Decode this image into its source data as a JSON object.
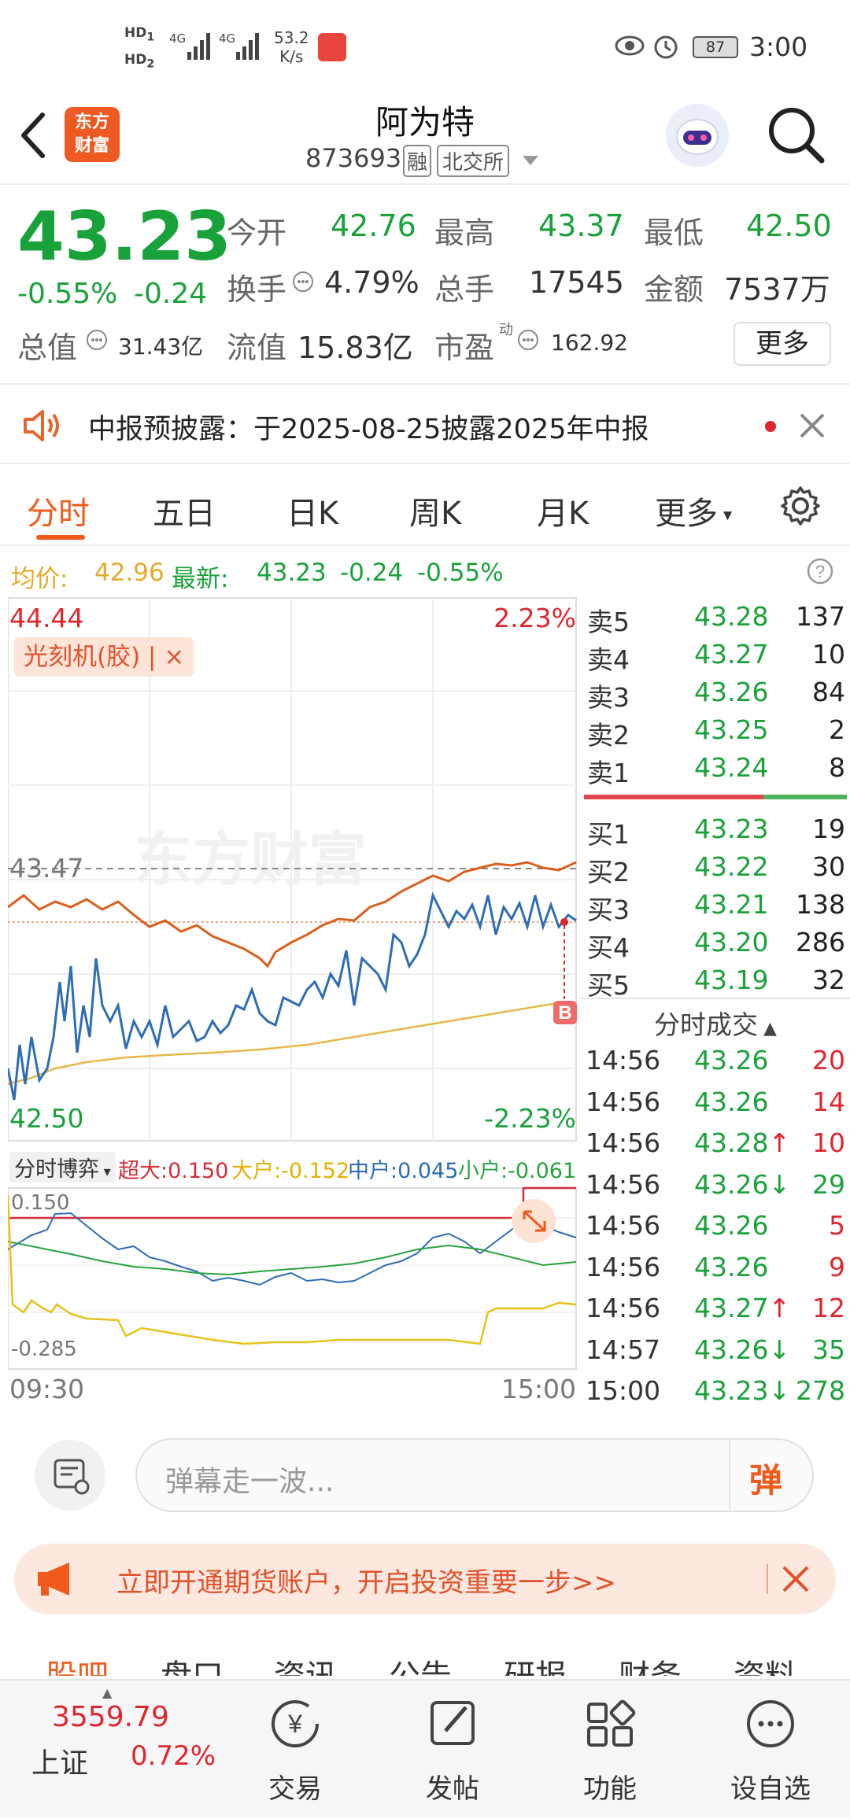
{
  "status_bar": {
    "hd1": "HD",
    "hd1_sub": "1",
    "hd2": "HD",
    "hd2_sub": "2",
    "sig1": "4G",
    "sig2": "4G",
    "speed_value": "53.2",
    "speed_unit": "K/s",
    "battery": "87",
    "time": "3:00"
  },
  "header": {
    "brand_line1": "东方",
    "brand_line2": "财富",
    "stock_name": "阿为特",
    "stock_code": "873693",
    "badge_margin": "融",
    "badge_exchange": "北交所"
  },
  "quote": {
    "price": "43.23",
    "change_pct": "-0.55%",
    "change_amt": "-0.24",
    "open_label": "今开",
    "open_value": "42.76",
    "high_label": "最高",
    "high_value": "43.37",
    "low_label": "最低",
    "low_value": "42.50",
    "turnover_label": "换手",
    "turnover_value": "4.79%",
    "volume_label": "总手",
    "volume_value": "17545",
    "amount_label": "金额",
    "amount_value": "7537万",
    "mktcap_label": "总值",
    "mktcap_value": "31.43亿",
    "float_label": "流值",
    "float_value": "15.83亿",
    "pe_label": "市盈",
    "pe_sup": "动",
    "pe_value": "162.92",
    "more_button": "更多"
  },
  "notice": {
    "text": "中报预披露：于2025-08-25披露2025年中报"
  },
  "tabs": [
    "分时",
    "五日",
    "日K",
    "周K",
    "月K",
    "更多"
  ],
  "active_tab": "分时",
  "avg_line": {
    "avg_label": "均价:",
    "avg_value": "42.96",
    "latest_label": "最新:",
    "latest_value": "43.23",
    "chg": "-0.24",
    "pct": "-0.55%"
  },
  "chart": {
    "y_max": "44.44",
    "y_max_pct": "2.23%",
    "y_min": "42.50",
    "y_min_pct": "-2.23%",
    "ref_price": "43.47",
    "concept_tag": "光刻机(胶)",
    "concept_close": "×",
    "watermark": "东方财富",
    "buy_marker": "B",
    "flow_selector": "分时博弈",
    "flow_super_label": "超大:",
    "flow_super_value": "0.150",
    "flow_large_label": "大户:",
    "flow_large_value": "-0.152",
    "flow_mid_label": "中户:",
    "flow_mid_value": "0.045",
    "flow_small_label": "小户:",
    "flow_small_value": "-0.061",
    "flow_max": "0.150",
    "flow_min": "-0.285",
    "time_start": "09:30",
    "time_end": "15:00"
  },
  "order_book": {
    "asks": [
      {
        "label": "卖5",
        "price": "43.28",
        "vol": "137"
      },
      {
        "label": "卖4",
        "price": "43.27",
        "vol": "10"
      },
      {
        "label": "卖3",
        "price": "43.26",
        "vol": "84"
      },
      {
        "label": "卖2",
        "price": "43.25",
        "vol": "2"
      },
      {
        "label": "卖1",
        "price": "43.24",
        "vol": "8"
      }
    ],
    "bids": [
      {
        "label": "买1",
        "price": "43.23",
        "vol": "19"
      },
      {
        "label": "买2",
        "price": "43.22",
        "vol": "30"
      },
      {
        "label": "买3",
        "price": "43.21",
        "vol": "138"
      },
      {
        "label": "买4",
        "price": "43.20",
        "vol": "286"
      },
      {
        "label": "买5",
        "price": "43.19",
        "vol": "32"
      }
    ],
    "trades_title": "分时成交",
    "trades": [
      {
        "time": "14:56",
        "price": "43.26",
        "arrow": "",
        "vol": "20",
        "color": "red"
      },
      {
        "time": "14:56",
        "price": "43.26",
        "arrow": "",
        "vol": "14",
        "color": "red"
      },
      {
        "time": "14:56",
        "price": "43.28",
        "arrow": "↑",
        "vol": "10",
        "color": "red"
      },
      {
        "time": "14:56",
        "price": "43.26",
        "arrow": "↓",
        "vol": "29",
        "color": "green"
      },
      {
        "time": "14:56",
        "price": "43.26",
        "arrow": "",
        "vol": "5",
        "color": "red"
      },
      {
        "time": "14:56",
        "price": "43.26",
        "arrow": "",
        "vol": "9",
        "color": "red"
      },
      {
        "time": "14:56",
        "price": "43.27",
        "arrow": "↑",
        "vol": "12",
        "color": "red"
      },
      {
        "time": "14:57",
        "price": "43.26",
        "arrow": "↓",
        "vol": "35",
        "color": "green"
      },
      {
        "time": "15:00",
        "price": "43.23",
        "arrow": "↓",
        "vol": "278",
        "color": "green"
      }
    ]
  },
  "comment": {
    "placeholder": "弹幕走一波...",
    "danmu_button": "弹"
  },
  "promo": {
    "text": "立即开通期货账户，开启投资重要一步>>"
  },
  "sub_tabs": [
    "股吧",
    "盘口",
    "资讯",
    "公告",
    "研报",
    "财务",
    "资料"
  ],
  "bottom_nav": {
    "index_value": "3559.79",
    "index_name": "上证",
    "index_pct": "0.72%",
    "items": [
      "交易",
      "发帖",
      "功能",
      "设自选"
    ]
  },
  "colors": {
    "up": "#e0262c",
    "down": "#19a23a",
    "accent": "#f05a1a",
    "avg_line": "#e6b84a",
    "price_line": "#2d6db5",
    "concept_line": "#d9601c"
  }
}
